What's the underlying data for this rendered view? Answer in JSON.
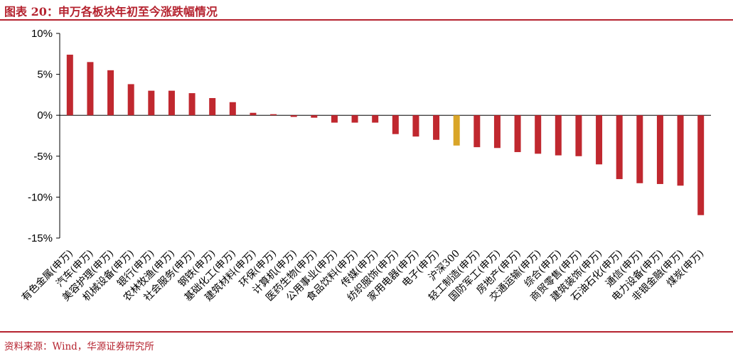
{
  "title": "图表 20：申万各板块年初至今涨跌幅情况",
  "source": "资料来源：Wind，华源证券研究所",
  "colors": {
    "accent": "#b5232f",
    "bar": "#c0282f",
    "benchmark": "#d9a528"
  },
  "chart_data": {
    "type": "bar",
    "title": "图表 20：申万各板块年初至今涨跌幅情况",
    "xlabel": "",
    "ylabel": "",
    "ylim": [
      -15,
      10
    ],
    "yticks": [
      10,
      5,
      0,
      -5,
      -10,
      -15
    ],
    "ytick_labels": [
      "10%",
      "5%",
      "0%",
      "-5%",
      "-10%",
      "-15%"
    ],
    "grid": false,
    "legend": "none",
    "highlight_category": "沪深300",
    "categories": [
      "有色金属(申万)",
      "汽车(申万)",
      "美容护理(申万)",
      "机械设备(申万)",
      "银行(申万)",
      "农林牧渔(申万)",
      "社会服务(申万)",
      "钢铁(申万)",
      "基础化工(申万)",
      "建筑材料(申万)",
      "环保(申万)",
      "计算机(申万)",
      "医药生物(申万)",
      "公用事业(申万)",
      "食品饮料(申万)",
      "传媒(申万)",
      "纺织服饰(申万)",
      "家用电器(申万)",
      "电子(申万)",
      "沪深300",
      "轻工制造(申万)",
      "国防军工(申万)",
      "房地产(申万)",
      "交通运输(申万)",
      "综合(申万)",
      "商贸零售(申万)",
      "建筑装饰(申万)",
      "石油石化(申万)",
      "通信(申万)",
      "电力设备(申万)",
      "非银金融(申万)",
      "煤炭(申万)"
    ],
    "values": [
      7.4,
      6.5,
      5.5,
      3.8,
      3.0,
      3.0,
      2.7,
      2.1,
      1.6,
      0.3,
      0.0,
      -0.2,
      -0.3,
      -0.9,
      -0.9,
      -0.9,
      -2.3,
      -2.6,
      -3.0,
      -3.7,
      -3.9,
      -4.0,
      -4.5,
      -4.7,
      -4.9,
      -5.0,
      -6.0,
      -7.8,
      -8.3,
      -8.4,
      -8.6,
      -12.2
    ]
  }
}
